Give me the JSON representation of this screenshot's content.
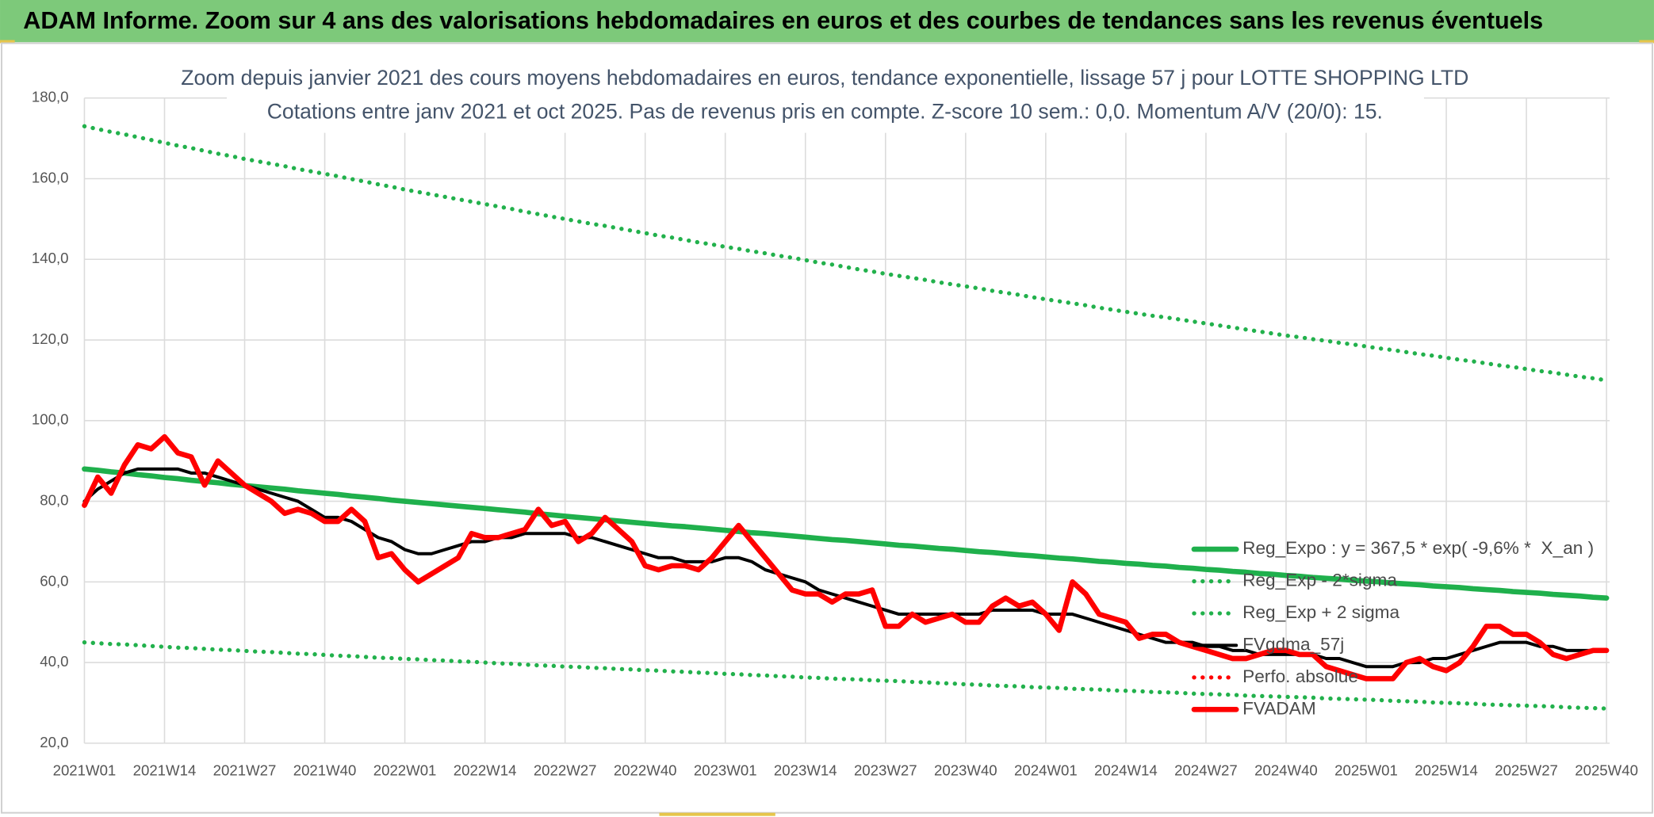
{
  "chart_data": {
    "type": "line",
    "title": "ADAM Informe. Zoom sur 4 ans des valorisations hebdomadaires en euros et des courbes de tendances sans les revenus éventuels",
    "subtitle": [
      "Zoom depuis janvier 2021 des cours moyens hebdomadaires en euros, tendance exponentielle, lissage 57 j pour LOTTE SHOPPING LTD",
      "Cotations entre janv 2021 et oct 2025. Pas de revenus pris en compte. Z-score 10 sem.: 0,0. Momentum A/V (20/0): 15."
    ],
    "categories": [
      "2021W01",
      null,
      null,
      null,
      null,
      null,
      "2021W14",
      null,
      null,
      null,
      null,
      null,
      "2021W27",
      null,
      null,
      null,
      null,
      null,
      "2021W40",
      null,
      null,
      null,
      null,
      null,
      "2022W01",
      null,
      null,
      null,
      null,
      null,
      "2022W14",
      null,
      null,
      null,
      null,
      null,
      "2022W27",
      null,
      null,
      null,
      null,
      null,
      "2022W40",
      null,
      null,
      null,
      null,
      null,
      "2023W01",
      null,
      null,
      null,
      null,
      null,
      "2023W14",
      null,
      null,
      null,
      null,
      null,
      "2023W27",
      null,
      null,
      null,
      null,
      null,
      "2023W40",
      null,
      null,
      null,
      null,
      null,
      "2024W01",
      null,
      null,
      null,
      null,
      null,
      "2024W14",
      null,
      null,
      null,
      null,
      null,
      "2024W27",
      null,
      null,
      null,
      null,
      null,
      "2024W40",
      null,
      null,
      null,
      null,
      null,
      "2025W01",
      null,
      null,
      null,
      null,
      null,
      "2025W14",
      null,
      null,
      null,
      null,
      null,
      "2025W27",
      null,
      null,
      null,
      null,
      null,
      "2025W40"
    ],
    "series": [
      {
        "name": "Reg_Expo : y = 367,5 * exp( -9,6% *  X_an )",
        "color": "#1fb04c",
        "style": "solid",
        "values": [
          88.0,
          87.7,
          87.3,
          87.0,
          86.6,
          86.3,
          85.9,
          85.6,
          85.2,
          84.9,
          84.6,
          84.2,
          83.9,
          83.6,
          83.3,
          83.0,
          82.6,
          82.3,
          82.0,
          81.7,
          81.3,
          81.0,
          80.7,
          80.3,
          80.0,
          79.7,
          79.4,
          79.1,
          78.8,
          78.5,
          78.2,
          77.9,
          77.6,
          77.3,
          76.9,
          76.6,
          76.3,
          76.0,
          75.7,
          75.4,
          75.1,
          74.8,
          74.5,
          74.2,
          73.9,
          73.7,
          73.4,
          73.1,
          72.8,
          72.5,
          72.2,
          72.0,
          71.7,
          71.4,
          71.1,
          70.8,
          70.5,
          70.3,
          70.0,
          69.7,
          69.4,
          69.1,
          68.9,
          68.6,
          68.3,
          68.1,
          67.8,
          67.5,
          67.3,
          67.0,
          66.7,
          66.5,
          66.2,
          65.9,
          65.7,
          65.4,
          65.1,
          64.9,
          64.6,
          64.4,
          64.1,
          63.9,
          63.6,
          63.4,
          63.1,
          62.9,
          62.6,
          62.4,
          62.1,
          61.9,
          61.6,
          61.4,
          61.1,
          60.9,
          60.7,
          60.4,
          60.2,
          60.0,
          59.7,
          59.5,
          59.3,
          59.0,
          58.8,
          58.6,
          58.3,
          58.1,
          57.9,
          57.6,
          57.4,
          57.2,
          56.9,
          56.7,
          56.5,
          56.2,
          56.0
        ]
      },
      {
        "name": "Reg_Exp - 2*sigma",
        "color": "#22b14c",
        "style": "dotted",
        "values": [
          45.0,
          44.8,
          44.6,
          44.5,
          44.3,
          44.1,
          43.9,
          43.7,
          43.6,
          43.4,
          43.2,
          43.1,
          42.9,
          42.7,
          42.6,
          42.4,
          42.2,
          42.1,
          41.9,
          41.7,
          41.6,
          41.4,
          41.2,
          41.1,
          40.9,
          40.8,
          40.6,
          40.5,
          40.3,
          40.2,
          40.0,
          39.8,
          39.7,
          39.5,
          39.3,
          39.2,
          39.0,
          38.9,
          38.7,
          38.6,
          38.4,
          38.3,
          38.1,
          38.0,
          37.8,
          37.7,
          37.5,
          37.4,
          37.2,
          37.1,
          36.9,
          36.8,
          36.6,
          36.5,
          36.3,
          36.2,
          36.0,
          35.9,
          35.8,
          35.6,
          35.5,
          35.4,
          35.2,
          35.1,
          34.9,
          34.8,
          34.6,
          34.5,
          34.3,
          34.2,
          34.1,
          33.9,
          33.8,
          33.7,
          33.5,
          33.4,
          33.3,
          33.1,
          33.0,
          32.9,
          32.7,
          32.6,
          32.5,
          32.3,
          32.2,
          32.1,
          32.0,
          31.8,
          31.7,
          31.6,
          31.5,
          31.4,
          31.3,
          31.1,
          31.0,
          30.9,
          30.8,
          30.7,
          30.5,
          30.4,
          30.3,
          30.1,
          30.0,
          29.9,
          29.8,
          29.6,
          29.5,
          29.4,
          29.3,
          29.2,
          29.1,
          28.9,
          28.8,
          28.7,
          28.6
        ]
      },
      {
        "name": "Reg_Exp + 2 sigma",
        "color": "#22b14c",
        "style": "dotted",
        "values": [
          173.0,
          172.3,
          171.6,
          171.0,
          170.3,
          169.6,
          168.9,
          168.2,
          167.6,
          166.9,
          166.2,
          165.6,
          164.9,
          164.3,
          163.7,
          163.1,
          162.4,
          161.8,
          161.2,
          160.6,
          159.9,
          159.3,
          158.6,
          158.0,
          157.3,
          156.7,
          156.1,
          155.5,
          154.9,
          154.3,
          153.7,
          153.1,
          152.5,
          151.8,
          151.2,
          150.6,
          150.0,
          149.4,
          148.8,
          148.3,
          147.7,
          147.1,
          146.5,
          145.9,
          145.4,
          144.8,
          144.2,
          143.7,
          143.1,
          142.6,
          142.0,
          141.5,
          140.9,
          140.4,
          139.8,
          139.2,
          138.7,
          138.1,
          137.5,
          137.0,
          136.4,
          135.9,
          135.4,
          134.9,
          134.3,
          133.8,
          133.3,
          132.8,
          132.2,
          131.7,
          131.2,
          130.6,
          130.1,
          129.6,
          129.1,
          128.6,
          128.0,
          127.5,
          127.0,
          126.5,
          126.0,
          125.6,
          125.1,
          124.6,
          124.1,
          123.6,
          123.1,
          122.6,
          122.1,
          121.6,
          121.1,
          120.7,
          120.2,
          119.8,
          119.3,
          118.9,
          118.4,
          117.9,
          117.5,
          117.0,
          116.5,
          116.1,
          115.6,
          115.1,
          114.7,
          114.2,
          113.7,
          113.3,
          112.8,
          112.3,
          111.9,
          111.4,
          110.9,
          110.5,
          110.0
        ]
      },
      {
        "name": "FVgdma_57j",
        "color": "#000000",
        "style": "solid",
        "values": [
          80,
          83,
          85,
          87,
          88,
          88,
          88,
          88,
          87,
          87,
          86,
          85,
          84,
          83,
          82,
          81,
          80,
          78,
          76,
          76,
          75,
          73,
          71,
          70,
          68,
          67,
          67,
          68,
          69,
          70,
          70,
          71,
          71,
          72,
          72,
          72,
          72,
          71,
          71,
          70,
          69,
          68,
          67,
          66,
          66,
          65,
          65,
          65,
          66,
          66,
          65,
          63,
          62,
          61,
          60,
          58,
          57,
          56,
          55,
          54,
          53,
          52,
          52,
          52,
          52,
          52,
          52,
          52,
          53,
          53,
          53,
          53,
          52,
          52,
          52,
          51,
          50,
          49,
          48,
          47,
          46,
          45,
          45,
          45,
          44,
          44,
          43,
          43,
          42,
          42,
          42,
          42,
          42,
          41,
          41,
          40,
          39,
          39,
          39,
          40,
          40,
          41,
          41,
          42,
          43,
          44,
          45,
          45,
          45,
          44,
          44,
          43,
          43,
          43,
          43
        ]
      },
      {
        "name": "Perfo. absolue",
        "color": "#ff0000",
        "style": "dotted",
        "values": [
          null,
          null,
          null,
          null,
          null,
          null,
          null,
          null,
          null,
          null,
          null,
          null,
          null,
          null,
          null,
          null,
          null,
          null,
          null,
          null,
          null,
          null,
          null,
          null,
          null,
          null,
          null,
          null,
          null,
          null,
          null,
          null,
          null,
          null,
          null,
          null,
          null,
          null,
          null,
          null,
          null,
          null,
          null,
          null,
          null,
          null,
          null,
          null,
          null,
          null,
          null,
          null,
          null,
          null,
          null,
          null,
          null,
          null,
          null,
          null,
          null,
          null,
          null,
          null,
          null,
          null,
          null,
          null,
          null,
          null,
          null,
          null,
          null,
          null,
          null,
          null,
          null,
          null,
          null,
          null,
          null,
          null,
          null,
          null,
          null,
          null,
          null,
          null,
          null,
          null,
          null,
          null,
          null,
          null,
          null,
          null,
          null,
          null,
          null,
          null,
          null,
          null,
          null,
          null,
          null,
          null,
          null,
          null,
          null,
          null,
          null,
          null,
          null,
          null,
          null
        ]
      },
      {
        "name": "FVADAM",
        "color": "#ff0000",
        "style": "solid",
        "values": [
          79,
          86,
          82,
          89,
          94,
          93,
          96,
          92,
          91,
          84,
          90,
          87,
          84,
          82,
          80,
          77,
          78,
          77,
          75,
          75,
          78,
          75,
          66,
          67,
          63,
          60,
          62,
          64,
          66,
          72,
          71,
          71,
          72,
          73,
          78,
          74,
          75,
          70,
          72,
          76,
          73,
          70,
          64,
          63,
          64,
          64,
          63,
          66,
          70,
          74,
          70,
          66,
          62,
          58,
          57,
          57,
          55,
          57,
          57,
          58,
          49,
          49,
          52,
          50,
          51,
          52,
          50,
          50,
          54,
          56,
          54,
          55,
          52,
          48,
          60,
          57,
          52,
          51,
          50,
          46,
          47,
          47,
          45,
          44,
          43,
          42,
          41,
          41,
          42,
          43,
          43,
          42,
          42,
          39,
          38,
          37,
          36,
          36,
          36,
          40,
          41,
          39,
          38,
          40,
          44,
          49,
          49,
          47,
          47,
          45,
          42,
          41,
          42,
          43,
          43
        ]
      }
    ],
    "ylim": [
      20,
      180
    ],
    "yticks": [
      {
        "value": 20,
        "label": "20,0"
      },
      {
        "value": 40,
        "label": "40,0"
      },
      {
        "value": 60,
        "label": "60,0"
      },
      {
        "value": 80,
        "label": "80,0"
      },
      {
        "value": 100,
        "label": "100,0"
      },
      {
        "value": 120,
        "label": "120,0"
      },
      {
        "value": 140,
        "label": "140,0"
      },
      {
        "value": 160,
        "label": "160,0"
      },
      {
        "value": 180,
        "label": "180,0"
      }
    ],
    "grid": true,
    "legend": "right"
  }
}
